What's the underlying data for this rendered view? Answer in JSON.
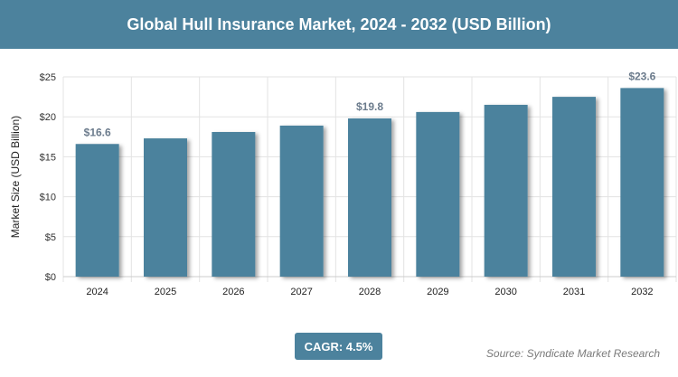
{
  "header": {
    "title": "Global Hull Insurance Market, 2024 - 2032 (USD Billion)"
  },
  "footer": {
    "cagr": "CAGR: 4.5%",
    "source": "Source: Syndicate Market Research"
  },
  "colors": {
    "bar": "#4c829d",
    "header": "#4c829d",
    "label": "#6b7b8c"
  },
  "chart_data": {
    "type": "bar",
    "title": "Global Hull Insurance Market, 2024 - 2032 (USD Billion)",
    "xlabel": "",
    "ylabel": "Market Size (USD Billion)",
    "ylim": [
      0,
      25
    ],
    "yticks": [
      "$0",
      "$5",
      "$10",
      "$15",
      "$20",
      "$25"
    ],
    "ytick_values": [
      0,
      5,
      10,
      15,
      20,
      25
    ],
    "categories": [
      "2024",
      "2025",
      "2026",
      "2027",
      "2028",
      "2029",
      "2030",
      "2031",
      "2032"
    ],
    "values": [
      16.6,
      17.3,
      18.1,
      18.9,
      19.8,
      20.6,
      21.5,
      22.5,
      23.6
    ],
    "data_labels": {
      "0": "$16.6",
      "4": "$19.8",
      "8": "$23.6"
    },
    "grid": true,
    "legend": "none"
  }
}
